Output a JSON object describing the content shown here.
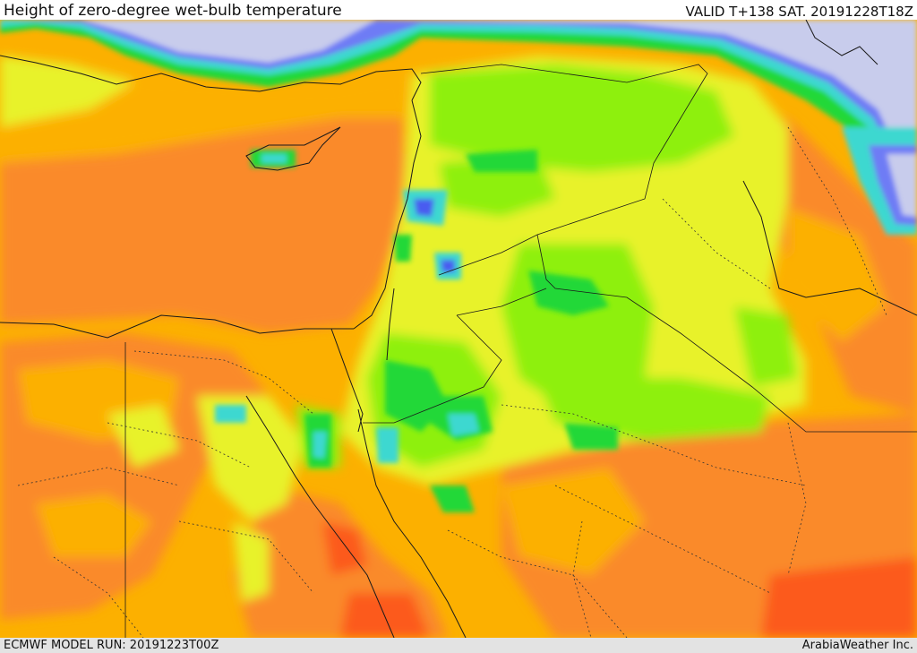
{
  "header": {
    "title": "Height of zero-degree wet-bulb temperature",
    "valid": "VALID T+138 SAT. 20191228T18Z"
  },
  "footer": {
    "model_run": "ECMWF MODEL RUN: 20191223T00Z",
    "credit": "ArabiaWeather Inc."
  },
  "palette": {
    "sea_cold": "#c8ccec",
    "deep_blue": "#4a5cf0",
    "blue": "#6e7cf5",
    "cyan": "#3cd8d0",
    "green": "#22d838",
    "lime": "#8ef008",
    "yellow": "#e8f22c",
    "orange": "#fcb000",
    "dark_orange": "#fa8a2c",
    "red_orange": "#fc5a1c",
    "border": "#1a1a1a"
  }
}
